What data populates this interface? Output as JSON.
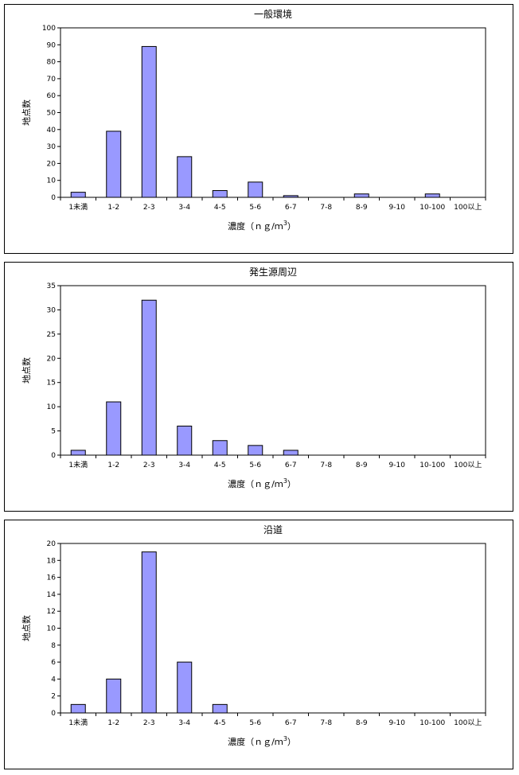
{
  "colors": {
    "bar": "#9999ff",
    "frame": "#000000",
    "background": "#ffffff"
  },
  "chart_data": [
    {
      "type": "bar",
      "title": "一般環境",
      "xlabel": "濃度（ｎｇ/ｍ3）",
      "xlabel_main": "濃度（ｎｇ/ｍ",
      "xlabel_sup": "3",
      "xlabel_close": "）",
      "ylabel": "地点数",
      "categories": [
        "1未満",
        "1-2",
        "2-3",
        "3-4",
        "4-5",
        "5-6",
        "6-7",
        "7-8",
        "8-9",
        "9-10",
        "10-100",
        "100以上"
      ],
      "values": [
        3,
        39,
        89,
        24,
        4,
        9,
        1,
        0,
        2,
        0,
        2,
        0
      ],
      "ylim": [
        0,
        100
      ],
      "yticks": [
        0,
        10,
        20,
        30,
        40,
        50,
        60,
        70,
        80,
        90,
        100
      ],
      "grid": false,
      "legend": "none"
    },
    {
      "type": "bar",
      "title": "発生源周辺",
      "xlabel": "濃度（ｎｇ/ｍ3）",
      "xlabel_main": "濃度（ｎｇ/ｍ",
      "xlabel_sup": "3",
      "xlabel_close": "）",
      "ylabel": "地点数",
      "categories": [
        "1未満",
        "1-2",
        "2-3",
        "3-4",
        "4-5",
        "5-6",
        "6-7",
        "7-8",
        "8-9",
        "9-10",
        "10-100",
        "100以上"
      ],
      "values": [
        1,
        11,
        32,
        6,
        3,
        2,
        1,
        0,
        0,
        0,
        0,
        0
      ],
      "ylim": [
        0,
        35
      ],
      "yticks": [
        0,
        5,
        10,
        15,
        20,
        25,
        30,
        35
      ],
      "grid": false,
      "legend": "none"
    },
    {
      "type": "bar",
      "title": "沿道",
      "xlabel": "濃度（ｎｇ/ｍ3）",
      "xlabel_main": "濃度（ｎｇ/ｍ",
      "xlabel_sup": "3",
      "xlabel_close": "）",
      "ylabel": "地点数",
      "categories": [
        "1未満",
        "1-2",
        "2-3",
        "3-4",
        "4-5",
        "5-6",
        "6-7",
        "7-8",
        "8-9",
        "9-10",
        "10-100",
        "100以上"
      ],
      "values": [
        1,
        4,
        19,
        6,
        1,
        0,
        0,
        0,
        0,
        0,
        0,
        0
      ],
      "ylim": [
        0,
        20
      ],
      "yticks": [
        0,
        2,
        4,
        6,
        8,
        10,
        12,
        14,
        16,
        18,
        20
      ],
      "grid": false,
      "legend": "none"
    }
  ]
}
